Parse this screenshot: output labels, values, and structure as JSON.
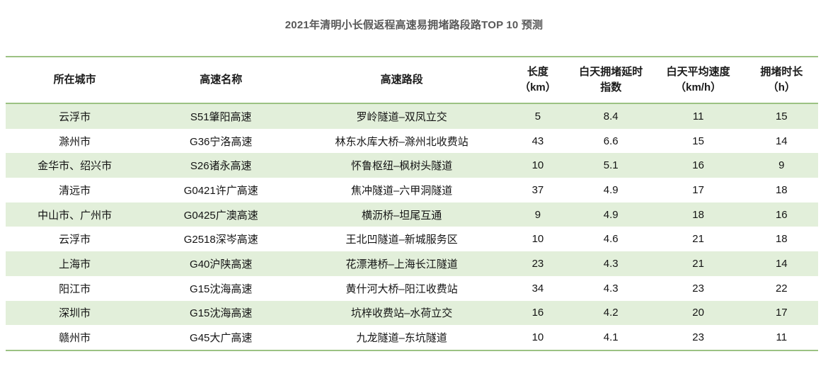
{
  "title": "2021年清明小长假返程高速易拥堵路段路TOP 10 预测",
  "colors": {
    "accent_green_line": "#9cc283",
    "row_fill_green": "#e2efda",
    "title_text": "#595959",
    "body_text": "#141414"
  },
  "chart_data": {
    "type": "table",
    "title": "2021年清明小长假返程高速易拥堵路段路TOP 10 预测",
    "columns": [
      "所在城市",
      "高速名称",
      "高速路段",
      "长度\n（km）",
      "白天拥堵延时\n指数",
      "白天平均速度\n（km/h）",
      "拥堵时长\n（h）"
    ],
    "rows": [
      [
        "云浮市",
        "S51肇阳高速",
        "罗岭隧道–双凤立交",
        "5",
        "8.4",
        "11",
        "15"
      ],
      [
        "滁州市",
        "G36宁洛高速",
        "林东水库大桥–滁州北收费站",
        "43",
        "6.6",
        "15",
        "14"
      ],
      [
        "金华市、绍兴市",
        "S26诸永高速",
        "怀鲁枢纽–枫树头隧道",
        "10",
        "5.1",
        "16",
        "9"
      ],
      [
        "清远市",
        "G0421许广高速",
        "焦冲隧道–六甲洞隧道",
        "37",
        "4.9",
        "17",
        "18"
      ],
      [
        "中山市、广州市",
        "G0425广澳高速",
        "横沥桥–坦尾互通",
        "9",
        "4.9",
        "18",
        "16"
      ],
      [
        "云浮市",
        "G2518深岑高速",
        "王北凹隧道–新城服务区",
        "10",
        "4.6",
        "21",
        "18"
      ],
      [
        "上海市",
        "G40沪陕高速",
        "花漂港桥–上海长江隧道",
        "23",
        "4.3",
        "21",
        "14"
      ],
      [
        "阳江市",
        "G15沈海高速",
        "黄什河大桥–阳江收费站",
        "34",
        "4.3",
        "23",
        "22"
      ],
      [
        "深圳市",
        "G15沈海高速",
        "坑梓收费站–水荷立交",
        "16",
        "4.2",
        "20",
        "17"
      ],
      [
        "赣州市",
        "G45大广高速",
        "九龙隧道–东坑隧道",
        "10",
        "4.1",
        "23",
        "11"
      ]
    ],
    "striping": "rows 1,3,5,7,9 (1-based odd rows) have light green background",
    "legend_position": "none",
    "grid": "horizontal green rules at table top, below header, and table bottom"
  }
}
